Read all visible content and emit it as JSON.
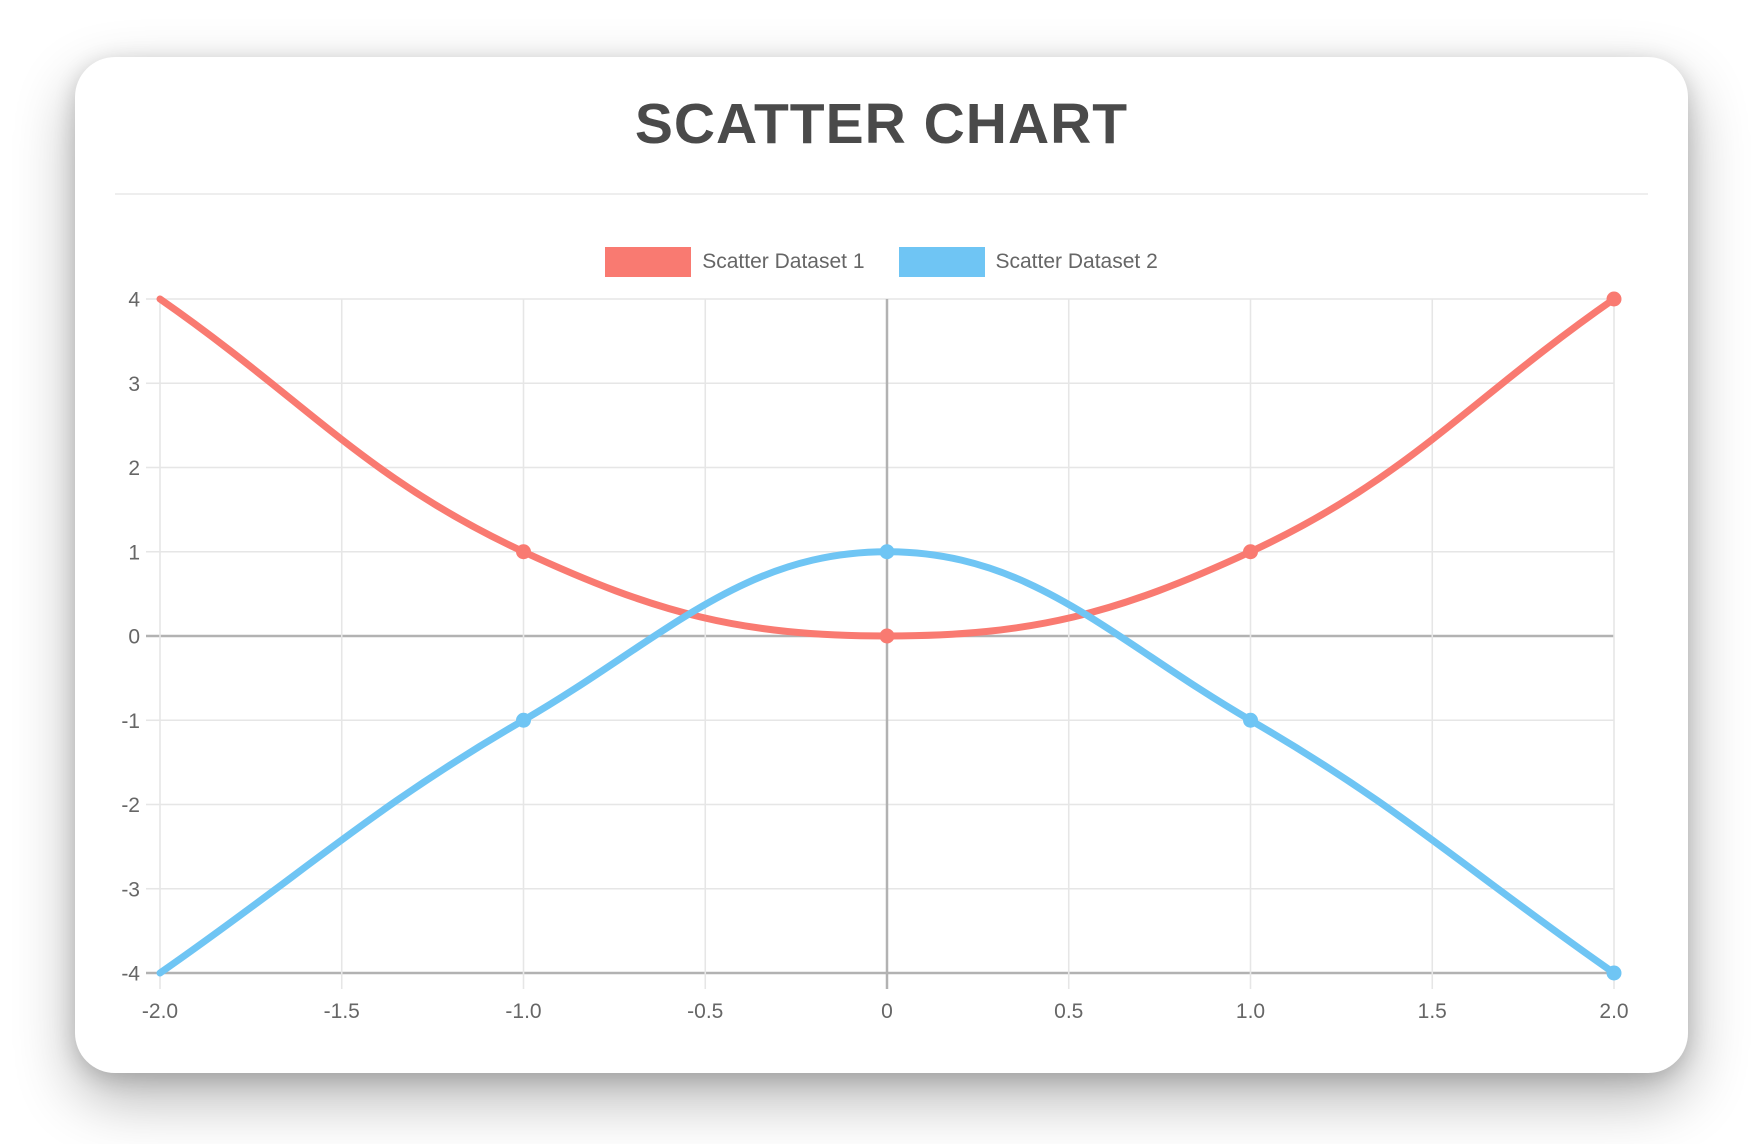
{
  "title": "SCATTER CHART",
  "chart_data": {
    "type": "scatter",
    "title": "SCATTER CHART",
    "line_style": "smooth",
    "show_line": true,
    "grid": true,
    "legend_position": "top",
    "xlim": [
      -2,
      2
    ],
    "ylim": [
      -4,
      4
    ],
    "x_tick_labels": [
      "-2.0",
      "-1.5",
      "-1.0",
      "-0.5",
      "0",
      "0.5",
      "1.0",
      "1.5",
      "2.0"
    ],
    "x_tick_values": [
      -2,
      -1.5,
      -1,
      -0.5,
      0,
      0.5,
      1,
      1.5,
      2
    ],
    "y_tick_labels": [
      "4",
      "3",
      "2",
      "1",
      "0",
      "-1",
      "-2",
      "-3",
      "-4"
    ],
    "y_tick_values": [
      4,
      3,
      2,
      1,
      0,
      -1,
      -2,
      -3,
      -4
    ],
    "series": [
      {
        "name": "Scatter Dataset 1",
        "color": "#F97A71",
        "points": [
          {
            "x": -2,
            "y": 4
          },
          {
            "x": -1,
            "y": 1
          },
          {
            "x": 0,
            "y": 0
          },
          {
            "x": 1,
            "y": 1
          },
          {
            "x": 2,
            "y": 4
          }
        ]
      },
      {
        "name": "Scatter Dataset 2",
        "color": "#6FC5F4",
        "points": [
          {
            "x": -2,
            "y": -4
          },
          {
            "x": -1,
            "y": -1
          },
          {
            "x": 0,
            "y": 1
          },
          {
            "x": 1,
            "y": -1
          },
          {
            "x": 2,
            "y": -4
          }
        ]
      }
    ]
  },
  "colors": {
    "title": "#4A4A4A",
    "legend_label": "#666666",
    "tick_label": "#666666",
    "grid_line": "#E6E6E6",
    "zero_line": "#B2B2B2",
    "axis_border": "#B2B2B2",
    "divider": "#EEEEEE",
    "card_background": "#FFFFFF",
    "page_background": "#FFFFFF"
  }
}
